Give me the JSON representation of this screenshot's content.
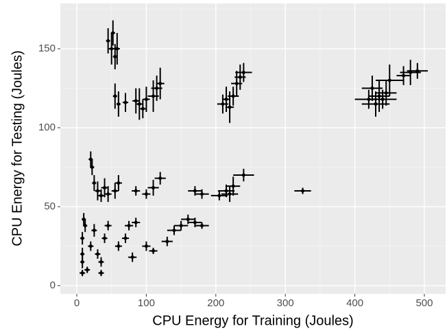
{
  "chart_data": {
    "type": "scatter",
    "x_label": "CPU Energy for Training (Joules)",
    "y_label": "CPU Energy for Testing (Joules)",
    "xlim": [
      -23.7,
      530.6
    ],
    "ylim": [
      -5.2,
      178.7
    ],
    "xticks": [
      0,
      100,
      200,
      300,
      400,
      500
    ],
    "yticks": [
      0,
      50,
      100,
      150
    ],
    "xminor": [
      50,
      150,
      250,
      350,
      450
    ],
    "yminor": [
      25,
      75,
      125,
      175
    ],
    "grid": true,
    "color": "#000000",
    "x": [
      45,
      50,
      55,
      58,
      52,
      55,
      60,
      70,
      85,
      90,
      100,
      110,
      115,
      120,
      95,
      210,
      215,
      220,
      225,
      230,
      235,
      240,
      420,
      425,
      430,
      435,
      440,
      445,
      450,
      480,
      490,
      470,
      20,
      22,
      25,
      30,
      35,
      40,
      45,
      55,
      60,
      85,
      100,
      110,
      120,
      170,
      180,
      205,
      215,
      220,
      225,
      240,
      325,
      10,
      12,
      8,
      8,
      8,
      8,
      15,
      20,
      25,
      30,
      35,
      40,
      45,
      35,
      60,
      70,
      75,
      80,
      85,
      100,
      110,
      130,
      140,
      150,
      160,
      170,
      180
    ],
    "y": [
      155,
      150,
      145,
      150,
      160,
      120,
      115,
      116,
      117,
      115,
      118,
      120,
      125,
      128,
      112,
      115,
      118,
      113,
      120,
      128,
      132,
      135,
      118,
      125,
      115,
      120,
      118,
      122,
      130,
      135,
      136,
      133,
      80,
      75,
      65,
      60,
      57,
      62,
      58,
      60,
      65,
      60,
      58,
      62,
      68,
      60,
      58,
      57,
      60,
      58,
      63,
      70,
      60,
      42,
      38,
      30,
      20,
      15,
      8,
      10,
      25,
      35,
      20,
      8,
      30,
      38,
      15,
      25,
      30,
      38,
      18,
      40,
      25,
      22,
      28,
      35,
      38,
      42,
      40,
      38
    ],
    "xerr": [
      3,
      4,
      3,
      4,
      3,
      3,
      3,
      4,
      5,
      5,
      5,
      8,
      8,
      6,
      4,
      8,
      6,
      6,
      8,
      8,
      8,
      12,
      20,
      15,
      20,
      15,
      20,
      15,
      20,
      15,
      15,
      10,
      3,
      3,
      3,
      4,
      5,
      5,
      5,
      5,
      5,
      6,
      6,
      8,
      8,
      10,
      10,
      12,
      12,
      12,
      10,
      15,
      12,
      3,
      3,
      3,
      3,
      3,
      4,
      4,
      4,
      4,
      4,
      4,
      4,
      5,
      4,
      5,
      5,
      6,
      6,
      6,
      6,
      6,
      8,
      10,
      10,
      10,
      10,
      10
    ],
    "yerr": [
      8,
      10,
      8,
      10,
      8,
      8,
      8,
      6,
      8,
      10,
      8,
      10,
      8,
      10,
      6,
      6,
      8,
      10,
      6,
      8,
      8,
      6,
      6,
      8,
      8,
      10,
      6,
      8,
      10,
      8,
      5,
      6,
      5,
      5,
      5,
      6,
      4,
      6,
      5,
      5,
      5,
      3,
      3,
      5,
      4,
      3,
      3,
      3,
      4,
      5,
      6,
      4,
      2,
      4,
      4,
      4,
      4,
      4,
      2,
      2,
      3,
      4,
      3,
      2,
      3,
      3,
      3,
      3,
      3,
      3,
      3,
      3,
      3,
      2,
      3,
      3,
      3,
      3,
      3,
      2
    ]
  }
}
